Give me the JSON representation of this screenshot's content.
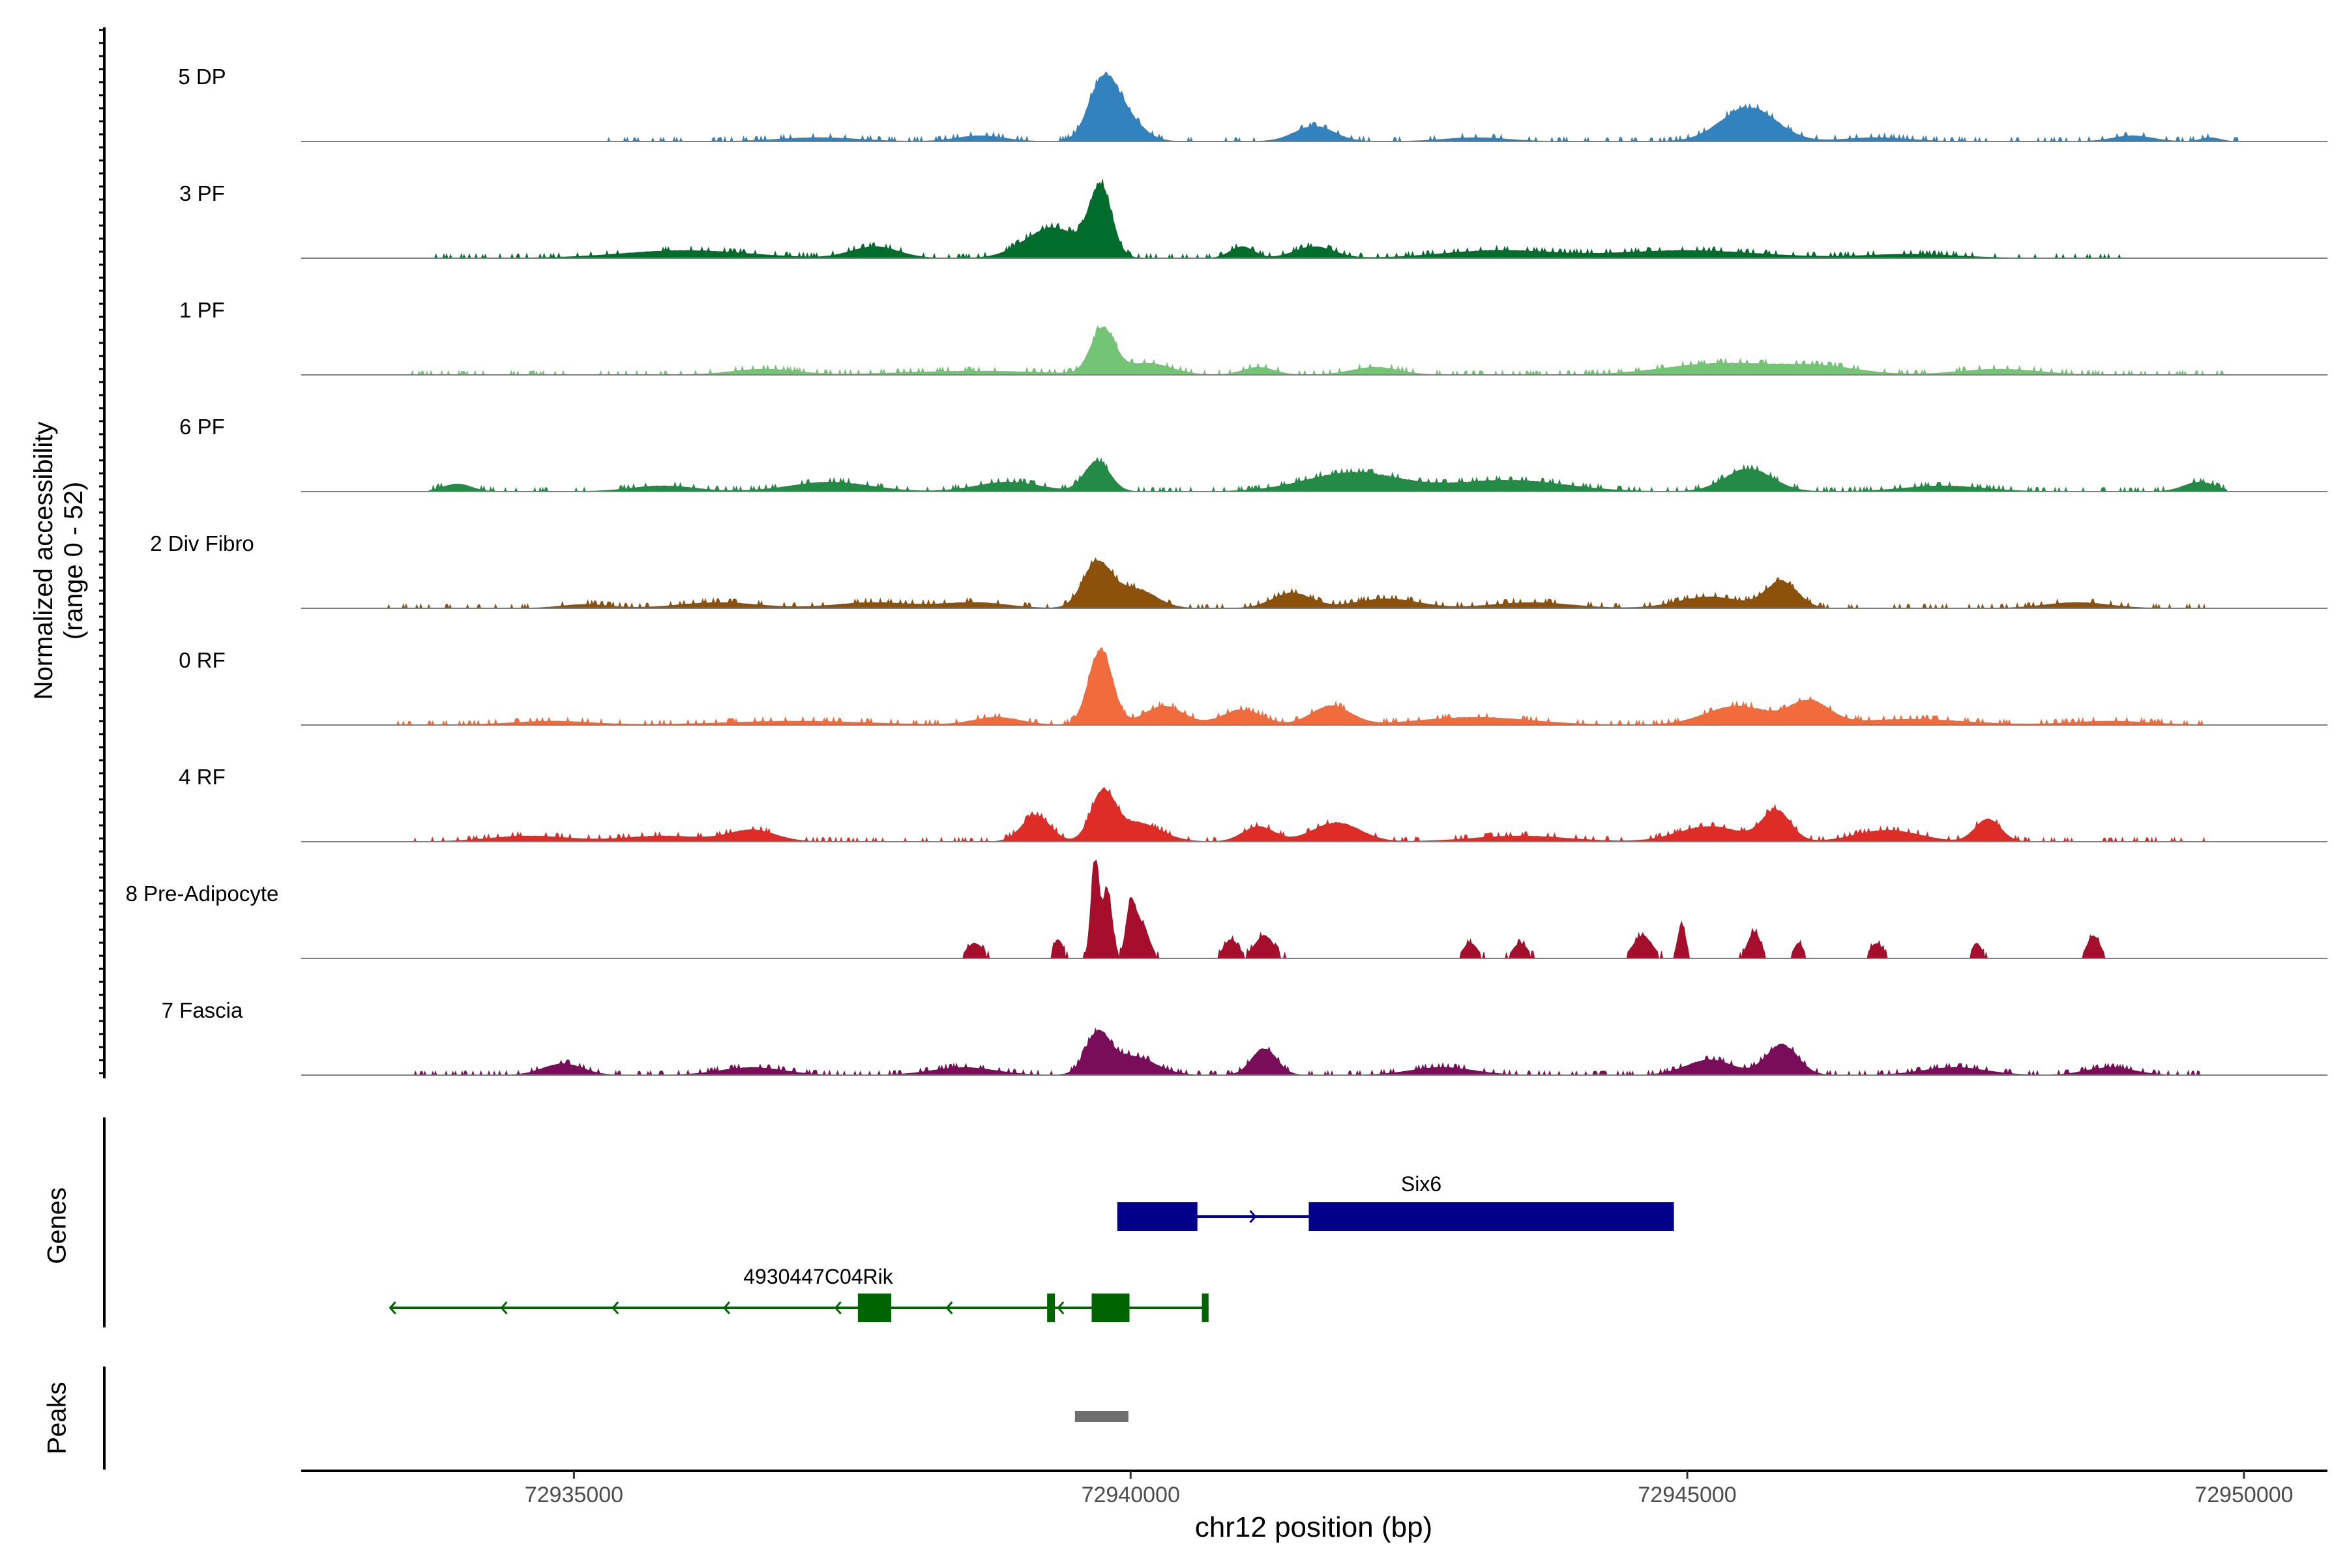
{
  "chart_data": {
    "type": "area",
    "title": "",
    "ylabel_lines": [
      "Normalized accessibility",
      "(range 0 - 52)"
    ],
    "xlabel": "chr12 position (bp)",
    "xlim": [
      72932550,
      72950750
    ],
    "x_ticks": [
      72935000,
      72940000,
      72945000,
      72950000
    ],
    "x_tick_labels": [
      "72935000",
      "72940000",
      "72945000",
      "72950000"
    ],
    "ylim": [
      0,
      52
    ],
    "tracks": [
      {
        "name": "5 DP",
        "color": "#3182bd",
        "peaks": [
          [
            72939750,
            30,
            180
          ],
          [
            72939950,
            12,
            220
          ],
          [
            72945550,
            18,
            350
          ],
          [
            72941650,
            8,
            250
          ],
          [
            72938650,
            3,
            300
          ],
          [
            72937200,
            2,
            500
          ],
          [
            72943100,
            2,
            400
          ],
          [
            72946700,
            2,
            400
          ],
          [
            72949000,
            3,
            250
          ],
          [
            72949700,
            2,
            120
          ]
        ],
        "range": [
          72935300,
          72949950
        ]
      },
      {
        "name": "3 PF",
        "color": "#006d2c",
        "peaks": [
          [
            72939730,
            36,
            140
          ],
          [
            72939300,
            16,
            350
          ],
          [
            72941000,
            6,
            150
          ],
          [
            72941650,
            6,
            250
          ],
          [
            72937700,
            6,
            300
          ],
          [
            72936000,
            4,
            800
          ],
          [
            72943300,
            4,
            700
          ],
          [
            72945000,
            4,
            900
          ],
          [
            72947000,
            2,
            600
          ]
        ],
        "range": [
          72933700,
          72948900
        ]
      },
      {
        "name": "1 PF",
        "color": "#74c476",
        "peaks": [
          [
            72939750,
            24,
            150
          ],
          [
            72940150,
            6,
            300
          ],
          [
            72941150,
            4,
            200
          ],
          [
            72942200,
            4,
            300
          ],
          [
            72945300,
            6,
            700
          ],
          [
            72946200,
            4,
            500
          ],
          [
            72936700,
            3,
            400
          ],
          [
            72938600,
            2,
            900
          ],
          [
            72947800,
            3,
            500
          ]
        ],
        "range": [
          72933500,
          72949850
        ]
      },
      {
        "name": "6 PF",
        "color": "#238b45",
        "peaks": [
          [
            72939700,
            16,
            160
          ],
          [
            72942000,
            10,
            600
          ],
          [
            72945550,
            12,
            300
          ],
          [
            72943400,
            6,
            700
          ],
          [
            72938900,
            5,
            400
          ],
          [
            72937300,
            5,
            500
          ],
          [
            72933950,
            4,
            180
          ],
          [
            72949600,
            5,
            200
          ],
          [
            72935800,
            3,
            400
          ],
          [
            72947300,
            3,
            500
          ]
        ],
        "range": [
          72933700,
          72949850
        ]
      },
      {
        "name": "2 Div Fibro",
        "color": "#8c510a",
        "peaks": [
          [
            72939700,
            24,
            180
          ],
          [
            72940050,
            10,
            250
          ],
          [
            72941450,
            8,
            250
          ],
          [
            72942300,
            5,
            400
          ],
          [
            72945850,
            14,
            200
          ],
          [
            72945200,
            6,
            400
          ],
          [
            72943600,
            3,
            500
          ],
          [
            72937700,
            3,
            500
          ],
          [
            72936300,
            3,
            500
          ],
          [
            72938600,
            3,
            400
          ],
          [
            72948500,
            3,
            400
          ],
          [
            72935100,
            2,
            300
          ]
        ],
        "range": [
          72933300,
          72949650
        ]
      },
      {
        "name": "0 RF",
        "color": "#f16c3d",
        "peaks": [
          [
            72939730,
            40,
            150
          ],
          [
            72940300,
            10,
            250
          ],
          [
            72941000,
            8,
            250
          ],
          [
            72941800,
            10,
            250
          ],
          [
            72945450,
            10,
            400
          ],
          [
            72946100,
            12,
            250
          ],
          [
            72943100,
            4,
            700
          ],
          [
            72947000,
            3,
            700
          ],
          [
            72937000,
            2,
            900
          ],
          [
            72938800,
            4,
            300
          ],
          [
            72934800,
            2,
            500
          ],
          [
            72948800,
            2,
            500
          ]
        ],
        "range": [
          72933300,
          72949650
        ]
      },
      {
        "name": "4 RF",
        "color": "#de2d26",
        "peaks": [
          [
            72939750,
            24,
            150
          ],
          [
            72939150,
            14,
            180
          ],
          [
            72940050,
            10,
            300
          ],
          [
            72941150,
            8,
            200
          ],
          [
            72941850,
            10,
            300
          ],
          [
            72945800,
            16,
            180
          ],
          [
            72945200,
            8,
            400
          ],
          [
            72947700,
            12,
            160
          ],
          [
            72946800,
            6,
            400
          ],
          [
            72936600,
            6,
            300
          ],
          [
            72935800,
            3,
            500
          ],
          [
            72934600,
            3,
            500
          ],
          [
            72943500,
            3,
            600
          ]
        ],
        "range": [
          72933500,
          72949650
        ]
      },
      {
        "name": "8 Pre-Adipocyte",
        "color": "#a50f2b",
        "peaks": [
          [
            72939680,
            52,
            50
          ],
          [
            72939790,
            36,
            60
          ],
          [
            72940000,
            26,
            60
          ],
          [
            72940100,
            18,
            90
          ],
          [
            72939350,
            10,
            60
          ],
          [
            72938600,
            8,
            100
          ],
          [
            72941200,
            12,
            120
          ],
          [
            72940900,
            10,
            90
          ],
          [
            72943050,
            8,
            90
          ],
          [
            72943500,
            8,
            90
          ],
          [
            72944600,
            12,
            120
          ],
          [
            72944950,
            18,
            50
          ],
          [
            72945600,
            14,
            80
          ],
          [
            72946000,
            8,
            60
          ],
          [
            72946700,
            8,
            80
          ],
          [
            72947600,
            8,
            60
          ],
          [
            72948650,
            12,
            80
          ]
        ],
        "range": [
          72938300,
          72948900
        ]
      },
      {
        "name": "7 Fascia",
        "color": "#7a0d5a",
        "peaks": [
          [
            72939700,
            20,
            150
          ],
          [
            72940000,
            10,
            300
          ],
          [
            72941200,
            14,
            160
          ],
          [
            72945850,
            16,
            200
          ],
          [
            72945200,
            8,
            300
          ],
          [
            72934900,
            6,
            250
          ],
          [
            72936600,
            4,
            400
          ],
          [
            72938500,
            4,
            400
          ],
          [
            72942800,
            4,
            400
          ],
          [
            72947400,
            4,
            400
          ],
          [
            72948800,
            4,
            300
          ]
        ],
        "range": [
          72933300,
          72949650
        ]
      }
    ],
    "genes": [
      {
        "name": "Six6",
        "strand": "+",
        "color": "#00008b",
        "start": 72939880,
        "end": 72944880,
        "exons": [
          [
            72939880,
            72940600
          ],
          [
            72941600,
            72944880
          ]
        ]
      },
      {
        "name": "4930447C04Rik",
        "strand": "-",
        "color": "#006400",
        "start": 72933350,
        "end": 72940700,
        "exons": [
          [
            72937550,
            72937850
          ],
          [
            72939250,
            72939320
          ],
          [
            72939650,
            72939990
          ],
          [
            72940640,
            72940700
          ]
        ]
      }
    ],
    "peaks_track": [
      [
        72939500,
        72939980
      ]
    ]
  },
  "panels": {
    "genes_title": "Genes",
    "peaks_title": "Peaks"
  }
}
